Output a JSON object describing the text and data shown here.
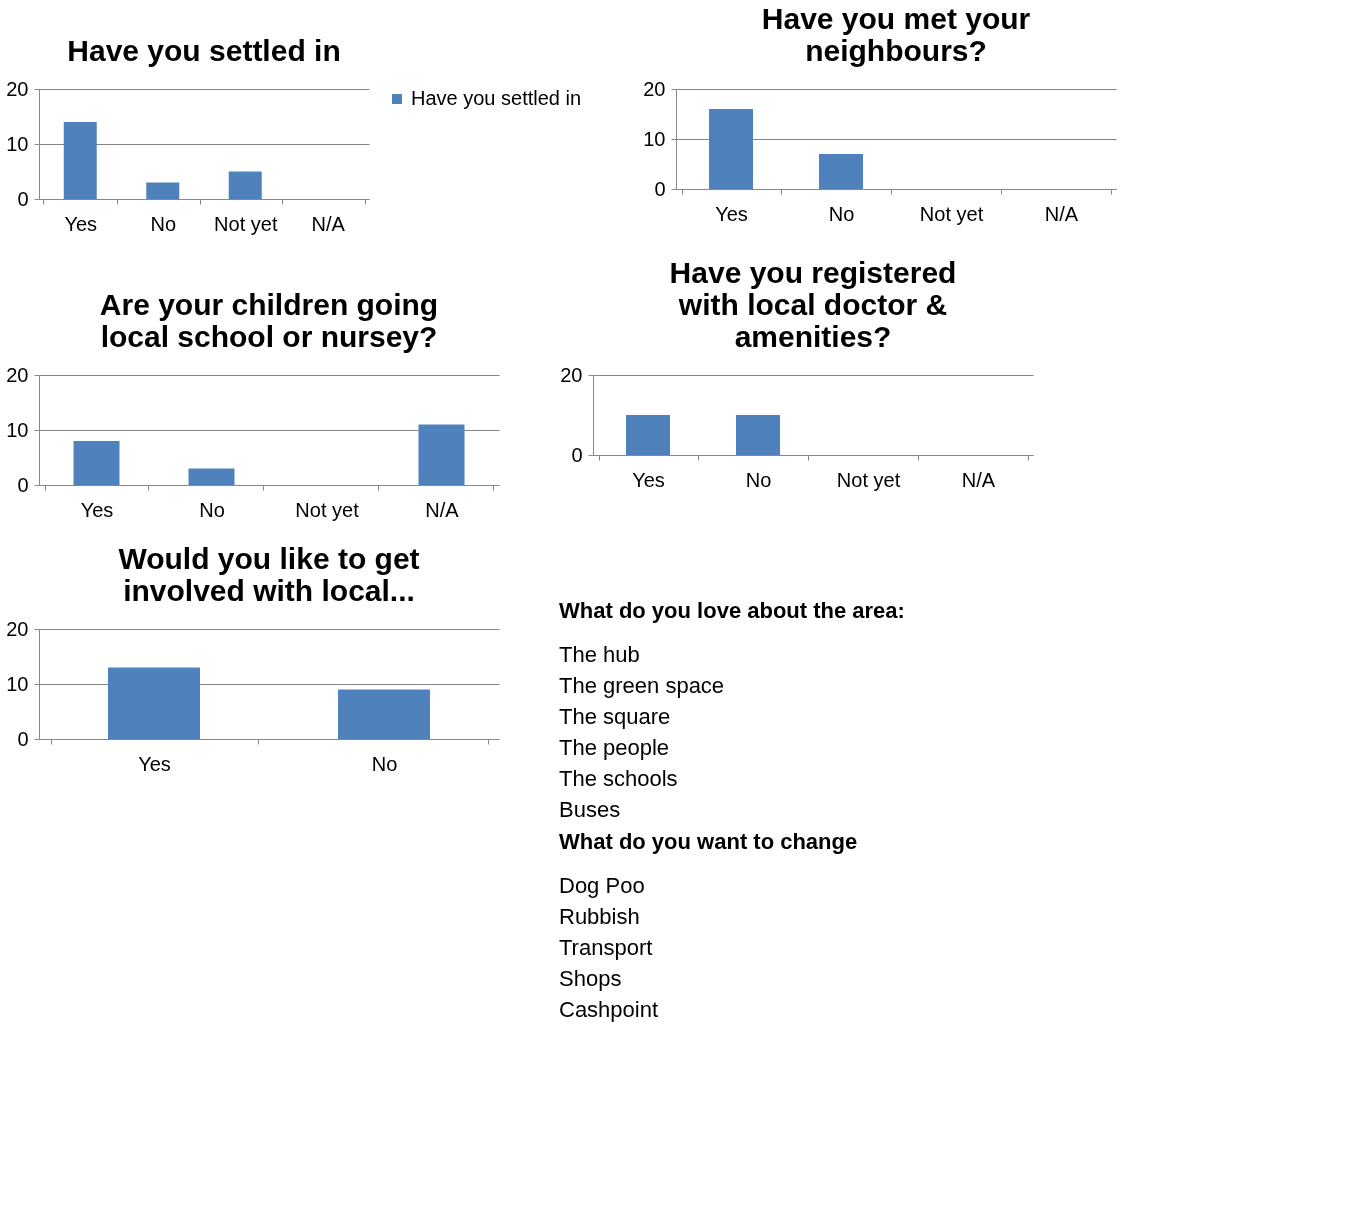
{
  "chart_data": [
    {
      "type": "bar",
      "title": "Have you settled in",
      "categories": [
        "Yes",
        "No",
        "Not yet",
        "N/A"
      ],
      "series": [
        {
          "name": "Have you settled in",
          "color": "#4f81bd",
          "values": [
            14,
            3,
            5,
            0
          ]
        }
      ],
      "ylim": [
        0,
        20
      ],
      "yticks": [
        0,
        10,
        20
      ],
      "grid": "y",
      "legend": "right"
    },
    {
      "type": "bar",
      "title": "Have you met your neighbours?",
      "categories": [
        "Yes",
        "No",
        "Not yet",
        "N/A"
      ],
      "values": [
        16,
        7,
        0,
        0
      ],
      "color": "#4f81bd",
      "ylim": [
        0,
        20
      ],
      "yticks": [
        0,
        10,
        20
      ],
      "grid": "y"
    },
    {
      "type": "bar",
      "title": "Are your children going local school or nursey?",
      "categories": [
        "Yes",
        "No",
        "Not yet",
        "N/A"
      ],
      "values": [
        8,
        3,
        0,
        11
      ],
      "color": "#4f81bd",
      "ylim": [
        0,
        20
      ],
      "yticks": [
        0,
        10,
        20
      ],
      "grid": "y"
    },
    {
      "type": "bar",
      "title": "Have you registered with local doctor & amenities?",
      "categories": [
        "Yes",
        "No",
        "Not yet",
        "N/A"
      ],
      "values": [
        10,
        10,
        0,
        0
      ],
      "color": "#4f81bd",
      "ylim": [
        0,
        20
      ],
      "yticks": [
        0,
        20
      ],
      "grid": "y"
    },
    {
      "type": "bar",
      "title": "Would you like to get involved with local...",
      "categories": [
        "Yes",
        "No"
      ],
      "values": [
        13,
        9
      ],
      "color": "#4f81bd",
      "ylim": [
        0,
        20
      ],
      "yticks": [
        0,
        10,
        20
      ],
      "grid": "y"
    },
    {
      "type": "other",
      "title": "What do you love about the area:",
      "annotations": [
        "The hub",
        "The green space",
        "The square",
        "The people",
        "The schools",
        "Buses"
      ]
    },
    {
      "type": "other",
      "title": "What do you want to change",
      "annotations": [
        "Dog Poo",
        "Rubbish",
        "Transport",
        "Shops",
        "Cashpoint"
      ]
    }
  ]
}
